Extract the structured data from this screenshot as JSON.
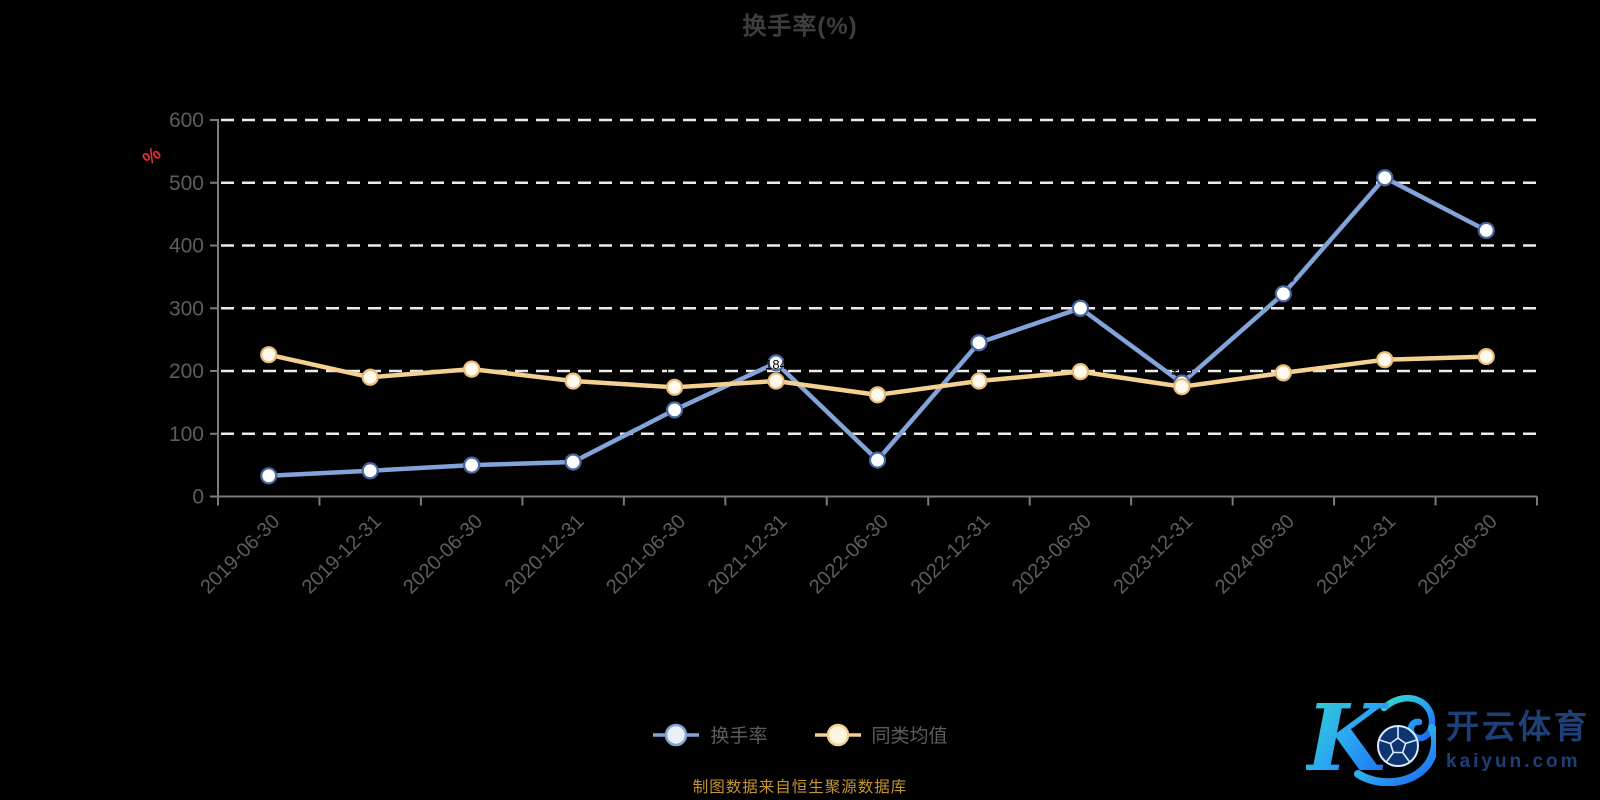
{
  "page": {
    "background": "#000000"
  },
  "title": {
    "text": "换手率(%)",
    "color": "#3e3e3e"
  },
  "axis_unit": {
    "text": "%",
    "color": "#e03030"
  },
  "source_note": {
    "text": "制图数据来自恒生聚源数据库",
    "color": "#c6952f"
  },
  "legend": {
    "text_color": "#5c5c5c",
    "items": [
      {
        "label": "换手率",
        "marker_fill": "#e9f0fa"
      },
      {
        "label": "同类均值",
        "marker_fill": "#fdf6e1"
      }
    ]
  },
  "logo": {
    "brand_name": "开云体育",
    "domain": "kaiyun.com",
    "text_color": "#1e4078",
    "gradient_start": "#35dcc6",
    "gradient_mid": "#2aa7f2",
    "gradient_end": "#1c64ee"
  },
  "chart_data": {
    "type": "line",
    "title": "换手率(%)",
    "ylabel": "%",
    "ylim": [
      0,
      600
    ],
    "y_ticks": [
      0,
      100,
      200,
      300,
      400,
      500,
      600
    ],
    "grid": "dashed-horizontal",
    "grid_color": "#ebebeb",
    "axis_color": "#7a7a7a",
    "tick_label_color": "#5d5d5d",
    "legend_position": "bottom",
    "categories": [
      "2019-06-30",
      "2019-12-31",
      "2020-06-30",
      "2020-12-31",
      "2021-06-30",
      "2021-12-31",
      "2022-06-30",
      "2022-12-31",
      "2023-06-30",
      "2023-12-31",
      "2024-06-30",
      "2024-12-31",
      "2025-06-30"
    ],
    "series": [
      {
        "name": "换手率",
        "color": "#82a4d9",
        "marker_fill": "#ffffff",
        "marker_ring": "#46679f",
        "values": [
          33,
          41,
          50,
          55,
          138,
          213,
          58,
          245,
          300,
          181,
          323,
          508,
          424
        ]
      },
      {
        "name": "同类均值",
        "color": "#f4d191",
        "marker_fill": "#fffaf0",
        "marker_ring": "#eabc74",
        "values": [
          226,
          190,
          203,
          184,
          174,
          184,
          162,
          184,
          199,
          175,
          197,
          218,
          223
        ]
      }
    ]
  }
}
